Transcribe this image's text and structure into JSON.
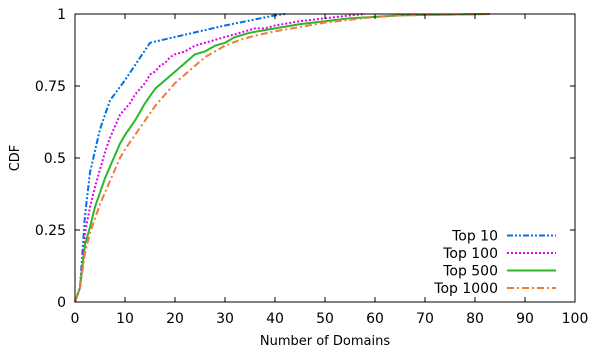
{
  "chart_data": {
    "type": "line",
    "xlabel": "Number of Domains",
    "ylabel": "CDF",
    "xlim": [
      0,
      100
    ],
    "ylim": [
      0,
      1
    ],
    "xticks": [
      0,
      10,
      20,
      30,
      40,
      50,
      60,
      70,
      80,
      90,
      100
    ],
    "yticks": [
      0,
      0.25,
      0.5,
      0.75,
      1
    ],
    "ytick_labels": [
      "0",
      "0.25",
      "0.5",
      "0.75",
      "1"
    ],
    "grid": false,
    "legend_position": "bottom-right",
    "series": [
      {
        "name": "Top 10",
        "color": "#0072e3",
        "dash": "dash-dot-dot",
        "x": [
          0,
          1,
          2,
          3,
          5,
          7,
          10,
          15,
          20,
          30,
          40,
          42
        ],
        "y": [
          0,
          0.05,
          0.3,
          0.45,
          0.6,
          0.7,
          0.77,
          0.9,
          0.92,
          0.96,
          0.995,
          1
        ]
      },
      {
        "name": "Top 100",
        "color": "#e600e6",
        "dash": "dotted",
        "x": [
          0,
          1,
          2,
          3,
          4,
          5,
          6,
          7,
          8,
          9,
          10,
          11,
          12,
          13,
          14,
          15,
          16,
          17,
          18,
          19,
          20,
          22,
          24,
          26,
          28,
          30,
          32,
          34,
          36,
          38,
          40,
          45,
          50,
          55,
          58
        ],
        "y": [
          0,
          0.05,
          0.24,
          0.33,
          0.4,
          0.46,
          0.52,
          0.57,
          0.61,
          0.65,
          0.67,
          0.69,
          0.72,
          0.74,
          0.76,
          0.79,
          0.8,
          0.82,
          0.83,
          0.85,
          0.86,
          0.87,
          0.89,
          0.9,
          0.91,
          0.92,
          0.93,
          0.94,
          0.95,
          0.95,
          0.96,
          0.975,
          0.985,
          0.995,
          1
        ]
      },
      {
        "name": "Top 500",
        "color": "#2ab82a",
        "dash": "solid",
        "x": [
          0,
          1,
          2,
          3,
          4,
          5,
          6,
          7,
          8,
          9,
          10,
          12,
          14,
          16,
          18,
          20,
          22,
          24,
          26,
          28,
          30,
          32,
          35,
          40,
          45,
          50,
          55,
          60,
          65,
          70,
          75,
          80,
          83
        ],
        "y": [
          0,
          0.05,
          0.2,
          0.26,
          0.33,
          0.38,
          0.43,
          0.47,
          0.51,
          0.55,
          0.58,
          0.63,
          0.69,
          0.74,
          0.77,
          0.8,
          0.83,
          0.86,
          0.87,
          0.89,
          0.9,
          0.92,
          0.935,
          0.95,
          0.965,
          0.975,
          0.985,
          0.99,
          0.995,
          0.997,
          0.998,
          0.999,
          1
        ]
      },
      {
        "name": "Top 1000",
        "color": "#f07a3a",
        "dash": "dash-dot",
        "x": [
          0,
          1,
          2,
          3,
          4,
          5,
          6,
          7,
          8,
          9,
          10,
          12,
          14,
          16,
          18,
          20,
          22,
          24,
          26,
          28,
          30,
          33,
          36,
          40,
          45,
          50,
          55,
          60,
          65,
          70,
          75,
          80,
          83
        ],
        "y": [
          0,
          0.05,
          0.17,
          0.24,
          0.29,
          0.34,
          0.38,
          0.42,
          0.46,
          0.5,
          0.53,
          0.58,
          0.63,
          0.68,
          0.72,
          0.76,
          0.79,
          0.82,
          0.85,
          0.87,
          0.89,
          0.91,
          0.925,
          0.94,
          0.955,
          0.97,
          0.98,
          0.99,
          0.995,
          0.997,
          0.998,
          0.999,
          1
        ]
      }
    ]
  }
}
